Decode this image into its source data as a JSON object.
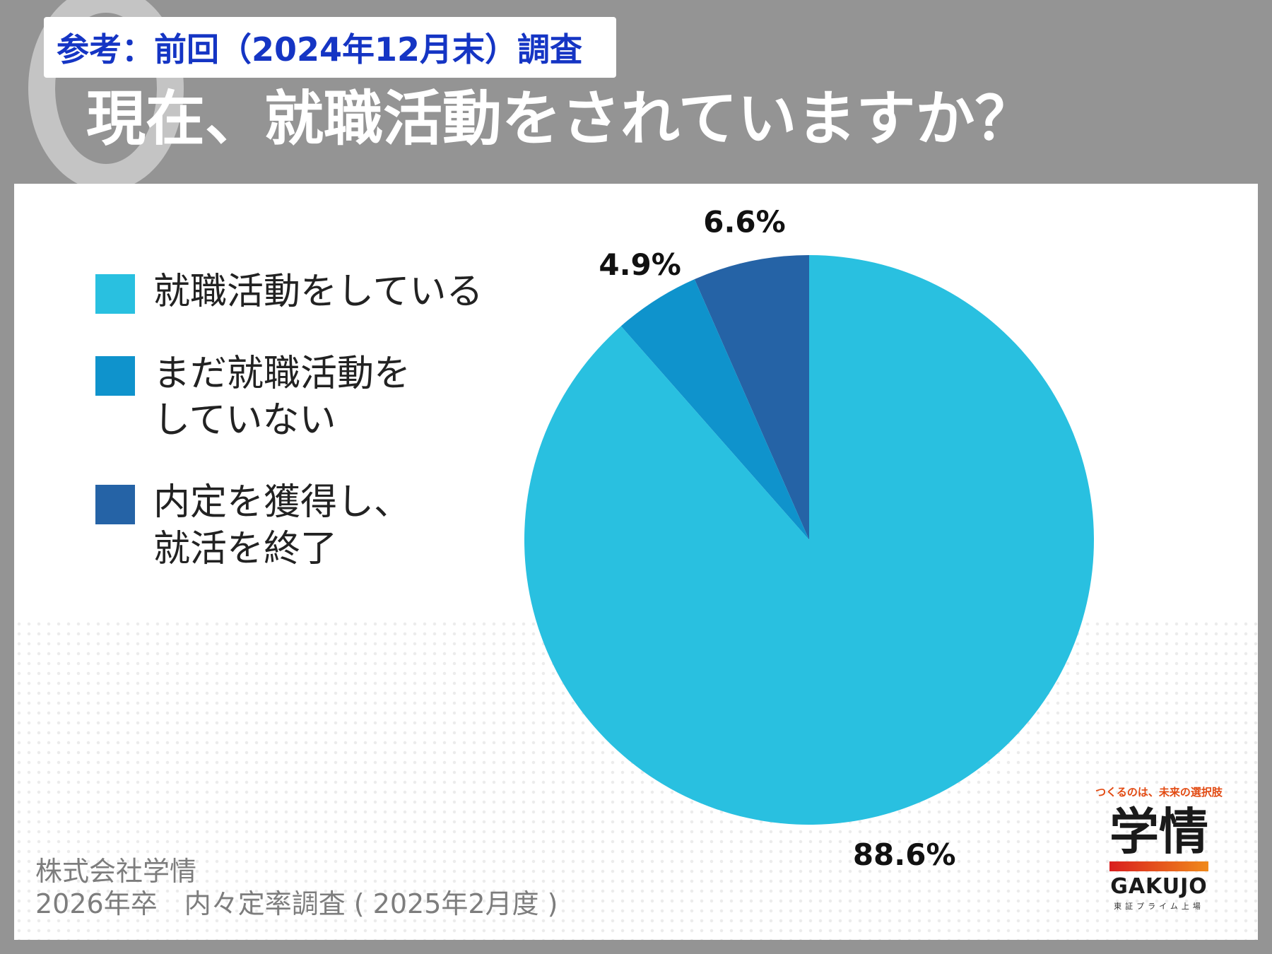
{
  "header": {
    "reference_badge": "参考：前回（2024年12月末）調査",
    "question": "現在、就職活動をされていますか？"
  },
  "chart_data": {
    "type": "pie",
    "categories": [
      "就職活動をしている",
      "まだ就職活動をしていない",
      "内定を獲得し、就活を終了"
    ],
    "values": [
      88.6,
      4.9,
      6.6
    ],
    "value_labels": [
      "88.6%",
      "4.9%",
      "6.6%"
    ],
    "colors": [
      "#29c0e0",
      "#0f93cc",
      "#2563a6"
    ],
    "legend_labels": [
      "就職活動をしている",
      "まだ就職活動を\nしていない",
      "内定を獲得し、\n就活を終了"
    ],
    "legend_position": "left"
  },
  "source": {
    "line1": "株式会社学情",
    "line2": "2026年卒　内々定率調査 ( 2025年2月度 )"
  },
  "logo": {
    "tagline": "つくるのは、未来の選択肢",
    "name": "学情",
    "english": "GAKUJO",
    "listing": "東証プライム上場"
  }
}
